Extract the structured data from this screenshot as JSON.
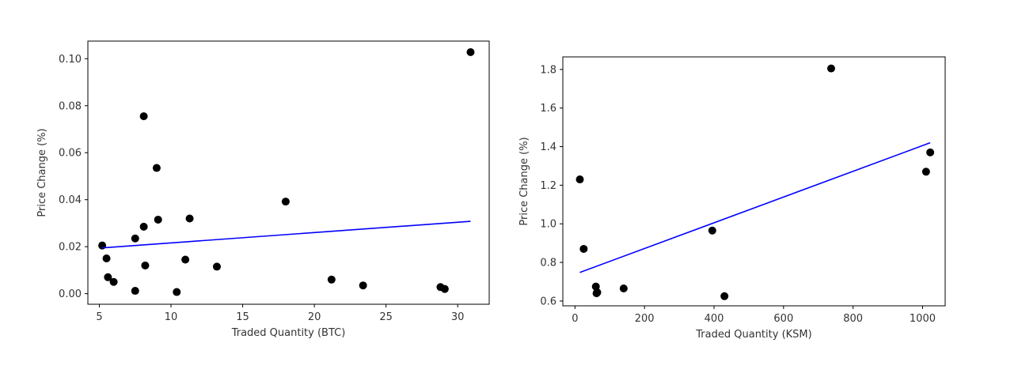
{
  "chart_data": [
    {
      "type": "scatter",
      "title": "",
      "xlabel": "Traded Quantity (BTC)",
      "ylabel": "Price Change (%)",
      "xlim": [
        4.2,
        32.2
      ],
      "ylim": [
        -0.0045,
        0.1075
      ],
      "xticks": [
        5,
        10,
        15,
        20,
        25,
        30
      ],
      "yticks": [
        0.0,
        0.02,
        0.04,
        0.06,
        0.08,
        0.1
      ],
      "xtick_labels": [
        "5",
        "10",
        "15",
        "20",
        "25",
        "30"
      ],
      "ytick_labels": [
        "0.00",
        "0.02",
        "0.04",
        "0.06",
        "0.08",
        "0.10"
      ],
      "grid": false,
      "point_color": "#000000",
      "line_color": "#0000ff",
      "points": [
        {
          "x": 5.2,
          "y": 0.0205
        },
        {
          "x": 5.5,
          "y": 0.015
        },
        {
          "x": 5.6,
          "y": 0.007
        },
        {
          "x": 6.0,
          "y": 0.005
        },
        {
          "x": 7.5,
          "y": 0.0235
        },
        {
          "x": 7.5,
          "y": 0.0012
        },
        {
          "x": 8.1,
          "y": 0.0755
        },
        {
          "x": 8.1,
          "y": 0.0285
        },
        {
          "x": 8.2,
          "y": 0.012
        },
        {
          "x": 9.0,
          "y": 0.0535
        },
        {
          "x": 9.1,
          "y": 0.0315
        },
        {
          "x": 10.4,
          "y": 0.0007
        },
        {
          "x": 11.0,
          "y": 0.0145
        },
        {
          "x": 11.3,
          "y": 0.032
        },
        {
          "x": 13.2,
          "y": 0.0115
        },
        {
          "x": 18.0,
          "y": 0.0392
        },
        {
          "x": 21.2,
          "y": 0.006
        },
        {
          "x": 23.4,
          "y": 0.0035
        },
        {
          "x": 28.8,
          "y": 0.0028
        },
        {
          "x": 29.1,
          "y": 0.002
        },
        {
          "x": 30.9,
          "y": 0.1028
        }
      ],
      "fit_line": {
        "x": [
          5.2,
          30.9
        ],
        "y": [
          0.0195,
          0.0308
        ]
      }
    },
    {
      "type": "scatter",
      "title": "",
      "xlabel": "Traded Quantity (KSM)",
      "ylabel": "Price Change (%)",
      "xlim": [
        -35,
        1065
      ],
      "ylim": [
        0.575,
        1.865
      ],
      "xticks": [
        0,
        200,
        400,
        600,
        800,
        1000
      ],
      "yticks": [
        0.6,
        0.8,
        1.0,
        1.2,
        1.4,
        1.6,
        1.8
      ],
      "xtick_labels": [
        "0",
        "200",
        "400",
        "600",
        "800",
        "1000"
      ],
      "ytick_labels": [
        "0.6",
        "0.8",
        "1.0",
        "1.2",
        "1.4",
        "1.6",
        "1.8"
      ],
      "grid": false,
      "point_color": "#000000",
      "line_color": "#0000ff",
      "points": [
        {
          "x": 14,
          "y": 1.23
        },
        {
          "x": 25,
          "y": 0.87
        },
        {
          "x": 60,
          "y": 0.675
        },
        {
          "x": 62,
          "y": 0.64
        },
        {
          "x": 64,
          "y": 0.645
        },
        {
          "x": 140,
          "y": 0.665
        },
        {
          "x": 395,
          "y": 0.965
        },
        {
          "x": 430,
          "y": 0.625
        },
        {
          "x": 737,
          "y": 1.805
        },
        {
          "x": 1010,
          "y": 1.27
        },
        {
          "x": 1022,
          "y": 1.37
        }
      ],
      "fit_line": {
        "x": [
          14,
          1022
        ],
        "y": [
          0.748,
          1.42
        ]
      }
    }
  ]
}
